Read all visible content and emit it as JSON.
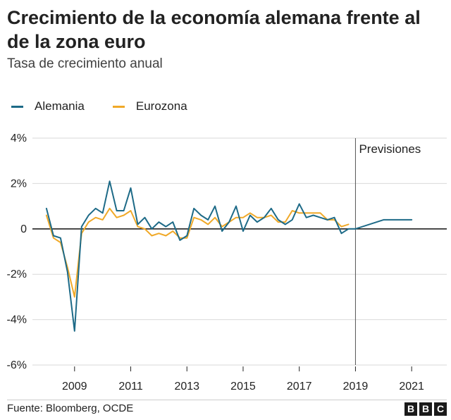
{
  "header": {
    "title": "Crecimiento de la economía alemana frente al de la zona euro",
    "subtitle": "Tasa de crecimiento anual"
  },
  "legend": [
    {
      "label": "Alemania",
      "color": "#1d6a87"
    },
    {
      "label": "Eurozona",
      "color": "#f0a928"
    }
  ],
  "annotation": {
    "label": "Previsiones",
    "x": 2019
  },
  "footer": {
    "source": "Fuente: Bloomberg, OCDE",
    "logo": [
      "B",
      "B",
      "C"
    ]
  },
  "chart_data": {
    "type": "line",
    "title": "Crecimiento de la economía alemana frente al de la zona euro",
    "subtitle": "Tasa de crecimiento anual",
    "xlabel": "",
    "ylabel": "",
    "xlim": [
      2007.5,
      2022.25
    ],
    "ylim": [
      -6,
      4
    ],
    "xticks": [
      2009,
      2011,
      2013,
      2015,
      2017,
      2019,
      2021
    ],
    "xtick_labels": [
      "2009",
      "2011",
      "2013",
      "2015",
      "2017",
      "2019",
      "2021"
    ],
    "yticks": [
      4,
      2,
      0,
      -2,
      -4,
      -6
    ],
    "ytick_labels": [
      "4%",
      "2%",
      "0",
      "-2%",
      "-4%",
      "-6%"
    ],
    "grid": "horizontal",
    "legend_position": "top-left",
    "series": [
      {
        "name": "Alemania",
        "color": "#1d6a87",
        "points": [
          [
            2008.0,
            0.9
          ],
          [
            2008.25,
            -0.3
          ],
          [
            2008.5,
            -0.4
          ],
          [
            2008.75,
            -1.9
          ],
          [
            2009.0,
            -4.5
          ],
          [
            2009.25,
            0.1
          ],
          [
            2009.5,
            0.6
          ],
          [
            2009.75,
            0.9
          ],
          [
            2010.0,
            0.7
          ],
          [
            2010.25,
            2.1
          ],
          [
            2010.5,
            0.8
          ],
          [
            2010.75,
            0.8
          ],
          [
            2011.0,
            1.8
          ],
          [
            2011.25,
            0.2
          ],
          [
            2011.5,
            0.5
          ],
          [
            2011.75,
            0.0
          ],
          [
            2012.0,
            0.3
          ],
          [
            2012.25,
            0.1
          ],
          [
            2012.5,
            0.3
          ],
          [
            2012.75,
            -0.5
          ],
          [
            2013.0,
            -0.3
          ],
          [
            2013.25,
            0.9
          ],
          [
            2013.5,
            0.6
          ],
          [
            2013.75,
            0.4
          ],
          [
            2014.0,
            1.0
          ],
          [
            2014.25,
            -0.1
          ],
          [
            2014.5,
            0.3
          ],
          [
            2014.75,
            1.0
          ],
          [
            2015.0,
            -0.1
          ],
          [
            2015.25,
            0.6
          ],
          [
            2015.5,
            0.3
          ],
          [
            2015.75,
            0.5
          ],
          [
            2016.0,
            0.9
          ],
          [
            2016.25,
            0.4
          ],
          [
            2016.5,
            0.2
          ],
          [
            2016.75,
            0.4
          ],
          [
            2017.0,
            1.1
          ],
          [
            2017.25,
            0.5
          ],
          [
            2017.5,
            0.6
          ],
          [
            2017.75,
            0.5
          ],
          [
            2018.0,
            0.4
          ],
          [
            2018.25,
            0.5
          ],
          [
            2018.5,
            -0.2
          ],
          [
            2018.75,
            0.0
          ],
          [
            2019.0,
            0.0
          ],
          [
            2020.0,
            0.4
          ],
          [
            2021.0,
            0.4
          ]
        ]
      },
      {
        "name": "Eurozona",
        "color": "#f0a928",
        "points": [
          [
            2008.0,
            0.6
          ],
          [
            2008.25,
            -0.4
          ],
          [
            2008.5,
            -0.6
          ],
          [
            2008.75,
            -1.7
          ],
          [
            2009.0,
            -3.0
          ],
          [
            2009.25,
            -0.2
          ],
          [
            2009.5,
            0.3
          ],
          [
            2009.75,
            0.5
          ],
          [
            2010.0,
            0.4
          ],
          [
            2010.25,
            0.9
          ],
          [
            2010.5,
            0.5
          ],
          [
            2010.75,
            0.6
          ],
          [
            2011.0,
            0.8
          ],
          [
            2011.25,
            0.1
          ],
          [
            2011.5,
            0.0
          ],
          [
            2011.75,
            -0.3
          ],
          [
            2012.0,
            -0.2
          ],
          [
            2012.25,
            -0.3
          ],
          [
            2012.5,
            -0.1
          ],
          [
            2012.75,
            -0.4
          ],
          [
            2013.0,
            -0.4
          ],
          [
            2013.25,
            0.5
          ],
          [
            2013.5,
            0.4
          ],
          [
            2013.75,
            0.2
          ],
          [
            2014.0,
            0.5
          ],
          [
            2014.25,
            0.1
          ],
          [
            2014.5,
            0.3
          ],
          [
            2014.75,
            0.5
          ],
          [
            2015.0,
            0.5
          ],
          [
            2015.25,
            0.7
          ],
          [
            2015.5,
            0.5
          ],
          [
            2015.75,
            0.5
          ],
          [
            2016.0,
            0.6
          ],
          [
            2016.25,
            0.3
          ],
          [
            2016.5,
            0.3
          ],
          [
            2016.75,
            0.8
          ],
          [
            2017.0,
            0.7
          ],
          [
            2017.25,
            0.7
          ],
          [
            2017.5,
            0.7
          ],
          [
            2017.75,
            0.7
          ],
          [
            2018.0,
            0.4
          ],
          [
            2018.25,
            0.4
          ],
          [
            2018.5,
            0.1
          ],
          [
            2018.75,
            0.2
          ]
        ]
      }
    ]
  }
}
